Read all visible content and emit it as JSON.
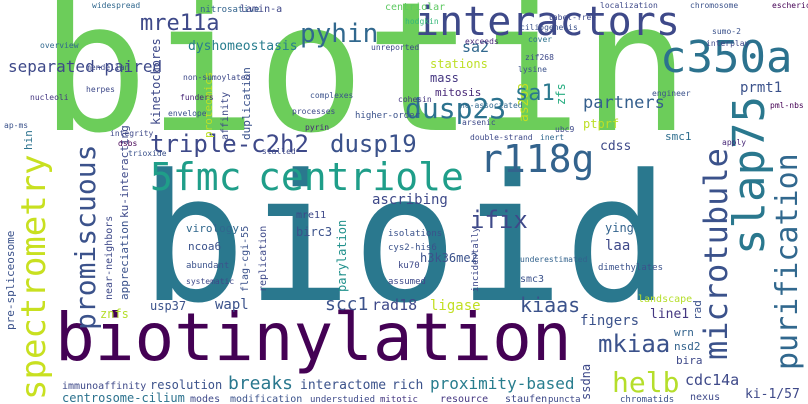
{
  "words": [
    "biotin",
    "bioid",
    "biotinylation",
    "spectrometry",
    "interactors",
    "c350a",
    "slap75",
    "microtubule",
    "purification",
    "r118g",
    "centriole",
    "5fmc",
    "triple-c2h2",
    "dusp19",
    "dusp23",
    "pyhin",
    "mre11a",
    "dyshomeostasis",
    "promiscuous",
    "helb",
    "mkiaa",
    "proximity-based",
    "breaks",
    "centrosome-cilium",
    "cdc14a",
    "ki-1/57",
    "ifix",
    "ascribing",
    "h3k36me2",
    "kiaas",
    "scc1",
    "rad18",
    "wapl",
    "usp37",
    "ligase",
    "fingers",
    "line1",
    "landscape",
    "nsd2",
    "wrn",
    "bira",
    "laa",
    "dimethylates",
    "ying",
    "staufen",
    "resource",
    "puncta",
    "nexus",
    "chromatids",
    "ssdna",
    "modes",
    "modification",
    "understudied",
    "mitotic",
    "rich",
    "interactome",
    "resolution",
    "immunoaffinity",
    "replication",
    "parylation",
    "flag-cgi-55",
    "incidentally",
    "cys2-his6",
    "ku70",
    "znfs",
    "appreciation",
    "near-neighbors",
    "ku-interacting",
    "pre-spliceosome",
    "virology",
    "ncoa6",
    "abundant",
    "systematic",
    "birc3",
    "mre11",
    "isolations",
    "assumed",
    "underestimated",
    "smc3",
    "sa2",
    "stations",
    "mass",
    "mitosis",
    "as2o3",
    "sa1",
    "ptprf",
    "zfs",
    "partners",
    "cdss",
    "smc1",
    "prmt1",
    "rad",
    "separated-paired",
    "hin",
    "kinetochores",
    "proteomics",
    "affinity",
    "duplication",
    "nitrosative",
    "lamin-a",
    "centriolar",
    "widespread",
    "localization",
    "chromosome",
    "escherichia",
    "hodgkin",
    "ciliogenesis",
    "label-free",
    "cover",
    "exceeds",
    "zif268",
    "lysine",
    "ne-associated",
    "arsenic",
    "cohesin",
    "complexes",
    "processes",
    "higher-order",
    "pyrin",
    "double-strand",
    "inert",
    "sumo-2",
    "interplay",
    "pml-nbs",
    "engineer",
    "non-sumoylated",
    "funders",
    "envelope",
    "mendelian",
    "overview",
    "herpes",
    "nucleoli",
    "ap-ms",
    "integrity",
    "dsbs",
    "trioxide",
    "stalled",
    "apply",
    "ubc9",
    "unreported"
  ]
}
